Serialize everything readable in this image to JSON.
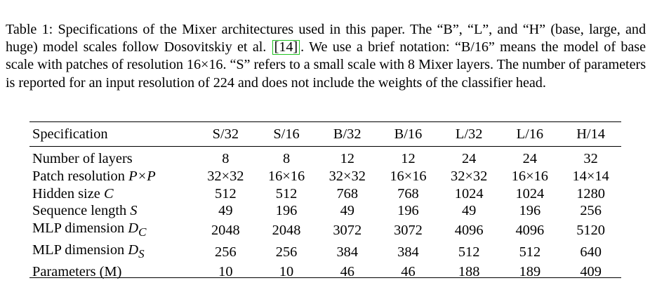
{
  "caption": {
    "part1": "Table 1: Specifications of the Mixer architectures used in this paper. The “B”, “L”, and “H” (base, large, and huge) model scales follow Dosovitskiy et al.",
    "citation": "[14]",
    "part2": ". We use a brief notation: “B/16” means the model of base scale with patches of resolution 16×16. “S” refers to a small scale with 8 Mixer layers. The number of parameters is reported for an input resolution of 224 and does not include the weights of the classifier head."
  },
  "table": {
    "header_label": "Specification",
    "columns": [
      "S/32",
      "S/16",
      "B/32",
      "B/16",
      "L/32",
      "L/16",
      "H/14"
    ],
    "rows": [
      {
        "label": "Number of layers",
        "symbol": "",
        "symbol_sub": "",
        "values": [
          "8",
          "8",
          "12",
          "12",
          "24",
          "24",
          "32"
        ]
      },
      {
        "label": "Patch resolution ",
        "symbol": "P×P",
        "symbol_sub": "",
        "values": [
          "32×32",
          "16×16",
          "32×32",
          "16×16",
          "32×32",
          "16×16",
          "14×14"
        ]
      },
      {
        "label": "Hidden size ",
        "symbol": "C",
        "symbol_sub": "",
        "values": [
          "512",
          "512",
          "768",
          "768",
          "1024",
          "1024",
          "1280"
        ]
      },
      {
        "label": "Sequence length ",
        "symbol": "S",
        "symbol_sub": "",
        "values": [
          "49",
          "196",
          "49",
          "196",
          "49",
          "196",
          "256"
        ]
      },
      {
        "label": "MLP dimension ",
        "symbol": "D",
        "symbol_sub": "C",
        "values": [
          "2048",
          "2048",
          "3072",
          "3072",
          "4096",
          "4096",
          "5120"
        ]
      },
      {
        "label": "MLP dimension ",
        "symbol": "D",
        "symbol_sub": "S",
        "values": [
          "256",
          "256",
          "384",
          "384",
          "512",
          "512",
          "640"
        ]
      },
      {
        "label": "Parameters (M)",
        "symbol": "",
        "symbol_sub": "",
        "values": [
          "10",
          "10",
          "46",
          "46",
          "188",
          "189",
          "409"
        ]
      }
    ]
  }
}
